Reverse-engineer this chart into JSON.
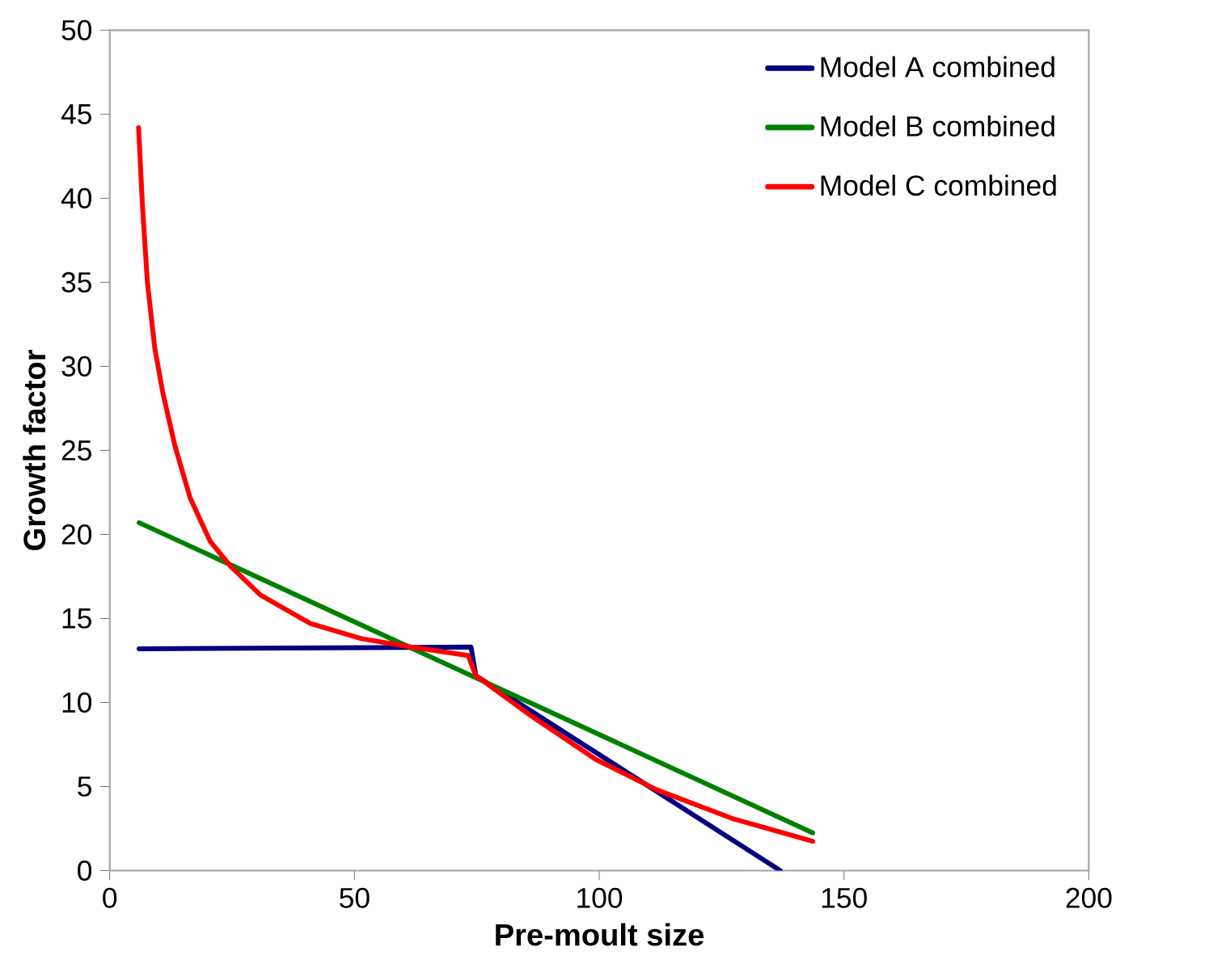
{
  "chart_data": {
    "type": "line",
    "xlabel": "Pre-moult size",
    "ylabel": "Growth factor",
    "xlim": [
      0,
      200
    ],
    "ylim": [
      0,
      50
    ],
    "xticks": [
      0,
      50,
      100,
      150,
      200
    ],
    "yticks": [
      0,
      5,
      10,
      15,
      20,
      25,
      30,
      35,
      40,
      45,
      50
    ],
    "grid": false,
    "legend": "top right",
    "marker": "none",
    "line_style": "solid",
    "series": [
      {
        "name": "Model A combined",
        "color": "#000080",
        "x": [
          6,
          73.8,
          74.8,
          137
        ],
        "values": [
          13.2,
          13.3,
          11.6,
          0
        ]
      },
      {
        "name": "Model B combined",
        "color": "#008000",
        "x": [
          6,
          143.6
        ],
        "values": [
          20.7,
          2.25
        ]
      },
      {
        "name": "Model C combined",
        "color": "#ff0000",
        "x": [
          5.9,
          6.7,
          7.7,
          9.2,
          10.8,
          13.3,
          16.4,
          20.5,
          24.7,
          30.8,
          41,
          51.4,
          61.6,
          73.2,
          74.8,
          86.1,
          99.4,
          111.8,
          127.2,
          143.6
        ],
        "values": [
          44.2,
          39.5,
          35,
          31.1,
          28.5,
          25.3,
          22.2,
          19.6,
          18.1,
          16.4,
          14.7,
          13.8,
          13.3,
          12.8,
          11.6,
          9.2,
          6.6,
          4.8,
          3.1,
          1.75
        ]
      }
    ]
  }
}
